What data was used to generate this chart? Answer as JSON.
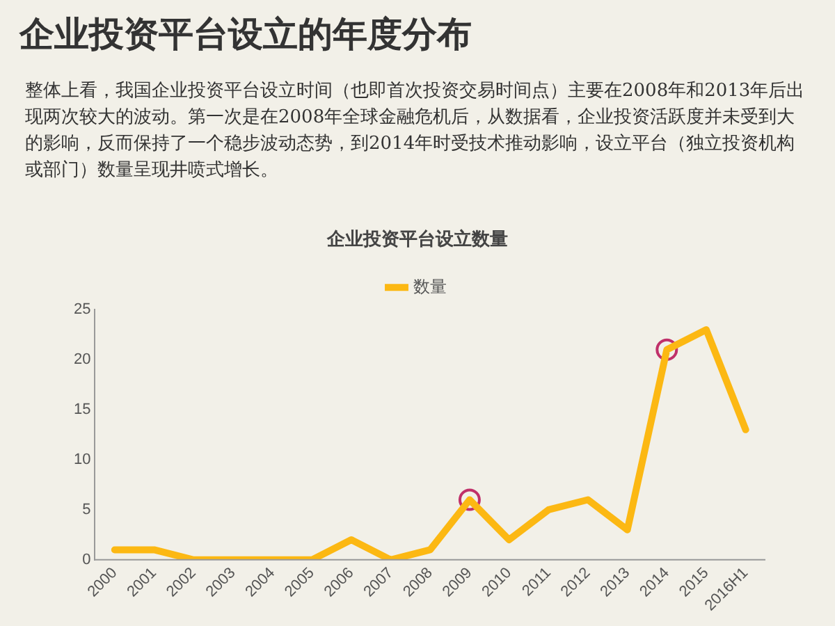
{
  "chart_data": {
    "type": "line",
    "title": "企业投资平台设立的年度分布",
    "subtitle": "企业投资平台设立数量",
    "annotations": [
      "整体上看，我国企业投资平台设立时间（也即首次投资交易时间点）主要在2008年和2013年后出现两次较大的波动。第一次是在2008年全球金融危机后，从数据看，企业投资活跃度并未受到大的影响，反而保持了一个稳步波动态势，到2014年时受技术推动影响，设立平台（独立投资机构或部门）数量呈现井喷式增长。"
    ],
    "categories": [
      "2000",
      "2001",
      "2002",
      "2003",
      "2004",
      "2005",
      "2006",
      "2007",
      "2008",
      "2009",
      "2010",
      "2011",
      "2012",
      "2013",
      "2014",
      "2015",
      "2016H1"
    ],
    "series": [
      {
        "name": "数量",
        "color": "#fcb813",
        "values": [
          1,
          1,
          0,
          0,
          0,
          0,
          2,
          0,
          1,
          6,
          2,
          5,
          6,
          3,
          21,
          23,
          13
        ]
      },
      {
        "type": "scatter",
        "marker": "circle",
        "color": "#c0306a",
        "values": [
          null,
          null,
          null,
          null,
          null,
          null,
          null,
          null,
          null,
          6,
          null,
          null,
          null,
          null,
          21,
          null,
          null
        ]
      }
    ],
    "ylim": [
      0,
      25
    ],
    "yticks": [
      0,
      5,
      10,
      15,
      20,
      25
    ],
    "grid": false,
    "legend": "top",
    "marker": "none",
    "line_style": "solid"
  }
}
